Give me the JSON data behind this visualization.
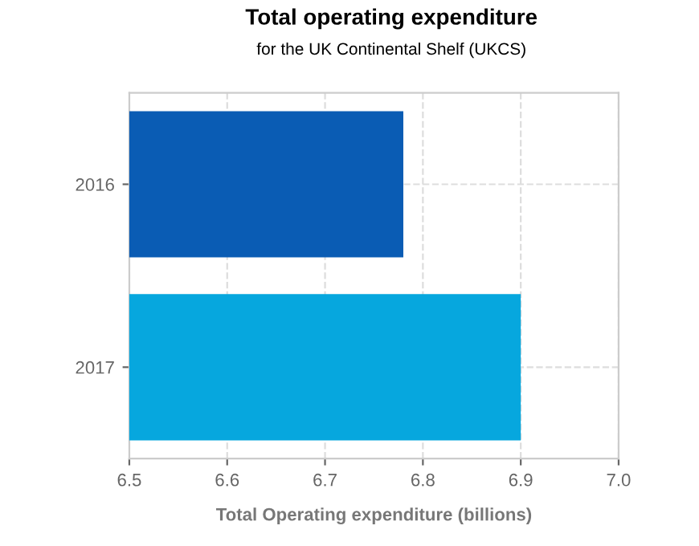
{
  "chart_data": {
    "type": "bar",
    "orientation": "horizontal",
    "title": "Total operating expenditure",
    "subtitle": "for the UK Continental Shelf (UKCS)",
    "xlabel": "Total Operating expenditure (billions)",
    "categories": [
      "2016",
      "2017"
    ],
    "values": [
      6.78,
      6.9
    ],
    "colors": [
      "#0a5cb4",
      "#06a7de"
    ],
    "xlim": [
      6.5,
      7.0
    ],
    "xticks": [
      6.5,
      6.6,
      6.7,
      6.8,
      6.9,
      {
        "value": 7,
        "label": "7.0"
      }
    ],
    "grid": true
  }
}
